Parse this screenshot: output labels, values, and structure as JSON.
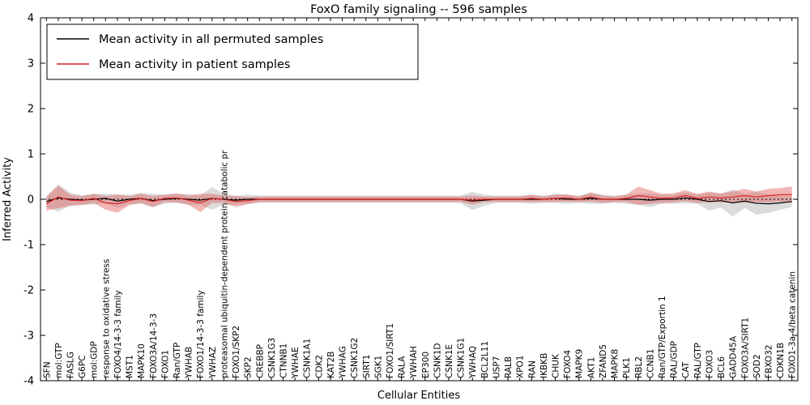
{
  "chart_data": {
    "type": "line",
    "title": "FoxO family signaling -- 596 samples",
    "xlabel": "Cellular Entities",
    "ylabel": "Inferred Activity",
    "ylim": [
      -4,
      4
    ],
    "yticks": [
      -4,
      -3,
      -2,
      -1,
      0,
      1,
      2,
      3,
      4
    ],
    "grid": false,
    "legend_position": "upper-left",
    "zero_line": true,
    "categories": [
      "SFN",
      "mol:GTP",
      "FASLG",
      "G6PC",
      "mol:GDP",
      "response to oxidative stress",
      "FOXO4/14-3-3 family",
      "MST1",
      "MAPK10",
      "FOXO3A/14-3-3",
      "FOXO1",
      "Ran/GTP",
      "YWHAB",
      "FOXO1/14-3-3 family",
      "YWHAZ",
      "proteasomal ubiquitin-dependent protein catabolic pr",
      "FOXO1/SKP2",
      "SKP2",
      "CREBBP",
      "CSNK1G3",
      "CTNNB1",
      "YWHAE",
      "CSNK1A1",
      "CDK2",
      "KAT2B",
      "YWHAG",
      "CSNK1G2",
      "SIRT1",
      "SGK1",
      "FOXO1/SIRT1",
      "RALA",
      "YWHAH",
      "EP300",
      "CSNK1D",
      "CSNK1E",
      "CSNK1G1",
      "YWHAQ",
      "BCL2L11",
      "USP7",
      "RALB",
      "XPO1",
      "RAN",
      "IKBKB",
      "CHUK",
      "FOXO4",
      "MAPK9",
      "AKT1",
      "ZFAND5",
      "MAPK8",
      "PLK1",
      "RBL2",
      "CCNB1",
      "Ran/GTP/Exportin 1",
      "RAL/GDP",
      "CAT",
      "RAL/GTP",
      "FOXO3",
      "BCL6",
      "GADD45A",
      "FOXO3A/SIRT1",
      "SOD2",
      "FBXO32",
      "CDKN1B",
      "FOXO1-3a-4/beta catenin"
    ],
    "series": [
      {
        "name": "Mean activity in all permuted samples",
        "color": "#000000",
        "band_color": "#c8c8c8",
        "band_opacity": 0.65,
        "values": [
          -0.05,
          0.03,
          0.0,
          -0.02,
          0.0,
          0.02,
          -0.04,
          0.0,
          0.02,
          -0.03,
          0.0,
          0.02,
          0.0,
          -0.02,
          0.02,
          0.0,
          -0.02,
          0.0,
          0.0,
          0.0,
          0.0,
          0.0,
          0.0,
          0.0,
          0.0,
          0.0,
          0.0,
          0.0,
          0.0,
          0.0,
          0.0,
          0.0,
          0.0,
          0.0,
          0.0,
          0.0,
          -0.04,
          -0.02,
          0.0,
          0.0,
          0.0,
          0.0,
          0.0,
          0.02,
          0.0,
          0.0,
          0.02,
          0.0,
          0.0,
          0.0,
          0.0,
          -0.02,
          0.0,
          0.0,
          0.03,
          0.0,
          -0.05,
          -0.03,
          -0.08,
          -0.04,
          -0.09,
          -0.1,
          -0.08,
          -0.05
        ],
        "band_halfwidth": [
          0.12,
          0.3,
          0.15,
          0.1,
          0.12,
          0.1,
          0.15,
          0.1,
          0.12,
          0.15,
          0.1,
          0.1,
          0.12,
          0.1,
          0.25,
          0.12,
          0.1,
          0.1,
          0.08,
          0.08,
          0.08,
          0.08,
          0.08,
          0.08,
          0.08,
          0.08,
          0.08,
          0.08,
          0.08,
          0.08,
          0.08,
          0.08,
          0.08,
          0.08,
          0.08,
          0.08,
          0.2,
          0.12,
          0.08,
          0.08,
          0.08,
          0.1,
          0.08,
          0.1,
          0.1,
          0.08,
          0.12,
          0.1,
          0.08,
          0.1,
          0.12,
          0.15,
          0.1,
          0.1,
          0.12,
          0.1,
          0.2,
          0.15,
          0.3,
          0.15,
          0.25,
          0.2,
          0.15,
          0.12
        ]
      },
      {
        "name": "Mean activity in patient samples",
        "color": "#dd2222",
        "band_color": "#e06060",
        "band_opacity": 0.45,
        "values": [
          -0.1,
          0.05,
          -0.02,
          -0.03,
          0.02,
          -0.08,
          -0.1,
          -0.03,
          0.02,
          -0.05,
          0.02,
          0.03,
          -0.02,
          -0.08,
          0.02,
          0.0,
          -0.05,
          -0.03,
          0.0,
          0.0,
          0.0,
          0.0,
          0.0,
          0.0,
          0.0,
          0.0,
          0.0,
          0.0,
          0.0,
          0.0,
          0.0,
          0.0,
          0.0,
          0.0,
          0.0,
          0.0,
          -0.02,
          0.0,
          0.0,
          0.0,
          0.0,
          0.02,
          0.0,
          0.02,
          0.03,
          0.0,
          0.05,
          0.0,
          0.0,
          0.02,
          0.08,
          0.05,
          0.02,
          0.03,
          0.08,
          0.02,
          0.05,
          0.03,
          0.05,
          0.08,
          0.05,
          0.08,
          0.1,
          0.1
        ],
        "band_halfwidth": [
          0.15,
          0.25,
          0.12,
          0.1,
          0.1,
          0.15,
          0.2,
          0.1,
          0.1,
          0.12,
          0.08,
          0.1,
          0.1,
          0.2,
          0.1,
          0.08,
          0.12,
          0.08,
          0.06,
          0.06,
          0.06,
          0.06,
          0.06,
          0.06,
          0.06,
          0.06,
          0.06,
          0.06,
          0.06,
          0.06,
          0.06,
          0.06,
          0.06,
          0.06,
          0.06,
          0.06,
          0.1,
          0.06,
          0.06,
          0.06,
          0.06,
          0.08,
          0.06,
          0.08,
          0.08,
          0.06,
          0.1,
          0.08,
          0.06,
          0.08,
          0.2,
          0.15,
          0.1,
          0.1,
          0.12,
          0.1,
          0.12,
          0.1,
          0.12,
          0.15,
          0.12,
          0.15,
          0.15,
          0.18
        ]
      }
    ],
    "legend": [
      {
        "label": "Mean activity in all permuted samples",
        "color": "#000000"
      },
      {
        "label": "Mean activity in patient samples",
        "color": "#dd2222"
      }
    ]
  }
}
